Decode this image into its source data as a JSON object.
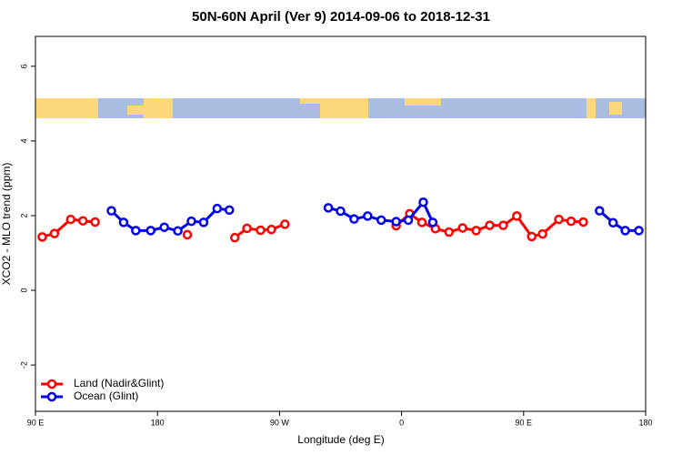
{
  "chart_data": {
    "type": "line",
    "title": "50N-60N April (Ver 9)   2014-09-06 to 2018-12-31",
    "x_label": "Longitude (deg E)",
    "y_label": "XCO2 - MLO trend (ppm)",
    "xlim": [
      90,
      540
    ],
    "xticks": [
      {
        "value": 90,
        "label": "90 E"
      },
      180,
      {
        "value": 270,
        "label": "90 W"
      },
      {
        "value": 360,
        "label": "0"
      },
      {
        "value": 450,
        "label": "90 E"
      },
      {
        "value": 540,
        "label": "180"
      }
    ],
    "ylim": [
      -3.24,
      6.8
    ],
    "yticks": [
      -2,
      0,
      2,
      4,
      6
    ],
    "legend": "bottom-left",
    "series": [
      {
        "name": "Land (Nadir&Glint)",
        "color": "#ff0000",
        "x": [
          95,
          104,
          116,
          125,
          134,
          null,
          202,
          null,
          237,
          246,
          256,
          264,
          274,
          null,
          356,
          366,
          375,
          385,
          395,
          405,
          415,
          425,
          435,
          445,
          456,
          464,
          476,
          485,
          494
        ],
        "values": [
          1.43,
          1.52,
          1.9,
          1.86,
          1.83,
          null,
          1.49,
          null,
          1.41,
          1.66,
          1.61,
          1.63,
          1.77,
          null,
          1.73,
          2.05,
          1.82,
          1.65,
          1.56,
          1.67,
          1.6,
          1.74,
          1.74,
          1.99,
          1.44,
          1.51,
          1.9,
          1.85,
          1.83
        ]
      },
      {
        "name": "Ocean (Glint)",
        "color": "#0000ee",
        "x": [
          146,
          155,
          164,
          175,
          185,
          195,
          205,
          214,
          224,
          233,
          null,
          306,
          315,
          325,
          335,
          345,
          356,
          365,
          376,
          383,
          null,
          506,
          516,
          525,
          535
        ],
        "values": [
          2.13,
          1.82,
          1.6,
          1.6,
          1.69,
          1.59,
          1.85,
          1.82,
          2.19,
          2.15,
          null,
          2.21,
          2.12,
          1.91,
          1.99,
          1.88,
          1.84,
          1.88,
          2.36,
          1.82,
          null,
          2.13,
          1.81,
          1.6,
          1.6
        ]
      }
    ]
  }
}
